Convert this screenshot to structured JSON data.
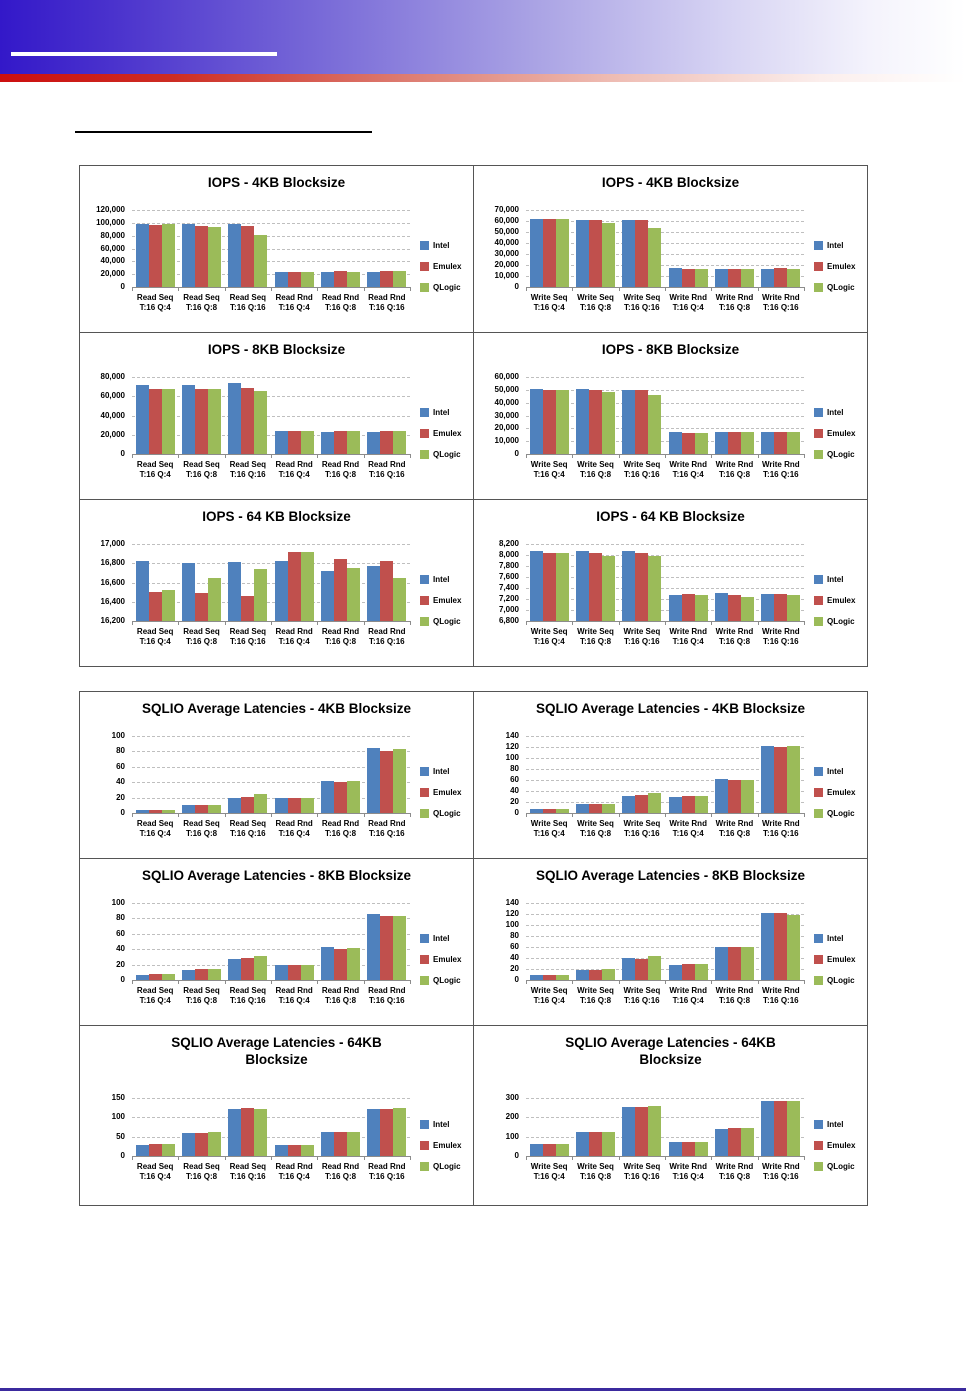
{
  "colors": {
    "header_blue": "#3318C9",
    "header_red": "#CC0F0F",
    "footer_line": "#3B2A9E",
    "gridline": "#BFBFBF",
    "axis": "#8C8C8C"
  },
  "legend": [
    {
      "name": "Intel",
      "color": "#4F81BD"
    },
    {
      "name": "Emulex",
      "color": "#C0504D"
    },
    {
      "name": "QLogic",
      "color": "#9BBB59"
    }
  ],
  "chart_data": [
    {
      "type": "bar",
      "title": "IOPS - 4KB Blocksize",
      "title_lines": [
        "IOPS - 4KB Blocksize"
      ],
      "group": "iops",
      "legend_position": "right",
      "grid": "dashed-horizontal",
      "xlabel": "",
      "ylabel": "",
      "ylim": [
        0,
        120000
      ],
      "ystep": 20000,
      "categories": [
        [
          "Read Seq",
          "T:16 Q:4"
        ],
        [
          "Read Seq",
          "T:16 Q:8"
        ],
        [
          "Read Seq",
          "T:16 Q:16"
        ],
        [
          "Read Rnd",
          "T:16 Q:4"
        ],
        [
          "Read Rnd",
          "T:16 Q:8"
        ],
        [
          "Read Rnd",
          "T:16 Q:16"
        ]
      ],
      "series": [
        {
          "name": "Intel",
          "values": [
            97500,
            97500,
            97500,
            23500,
            23500,
            23500
          ]
        },
        {
          "name": "Emulex",
          "values": [
            96000,
            95500,
            95000,
            23500,
            25000,
            25000
          ]
        },
        {
          "name": "QLogic",
          "values": [
            98500,
            93000,
            80500,
            23500,
            24000,
            25000
          ]
        }
      ]
    },
    {
      "type": "bar",
      "title": "IOPS - 4KB Blocksize",
      "title_lines": [
        "IOPS - 4KB Blocksize"
      ],
      "group": "iops",
      "legend_position": "right",
      "grid": "dashed-horizontal",
      "xlabel": "",
      "ylabel": "",
      "ylim": [
        0,
        70000
      ],
      "ystep": 10000,
      "categories": [
        [
          "Write Seq",
          "T:16 Q:4"
        ],
        [
          "Write Seq",
          "T:16 Q:8"
        ],
        [
          "Write Seq",
          "T:16 Q:16"
        ],
        [
          "Write Rnd",
          "T:16 Q:4"
        ],
        [
          "Write Rnd",
          "T:16 Q:8"
        ],
        [
          "Write Rnd",
          "T:16 Q:16"
        ]
      ],
      "series": [
        {
          "name": "Intel",
          "values": [
            62000,
            61200,
            61200,
            17000,
            16500,
            16500
          ]
        },
        {
          "name": "Emulex",
          "values": [
            62000,
            60800,
            60800,
            16500,
            16500,
            17300
          ]
        },
        {
          "name": "QLogic",
          "values": [
            62200,
            58500,
            54000,
            16500,
            16500,
            16500
          ]
        }
      ]
    },
    {
      "type": "bar",
      "title": "IOPS - 8KB Blocksize",
      "title_lines": [
        "IOPS - 8KB Blocksize"
      ],
      "group": "iops",
      "legend_position": "right",
      "grid": "dashed-horizontal",
      "xlabel": "",
      "ylabel": "",
      "ylim": [
        0,
        80000
      ],
      "ystep": 20000,
      "categories": [
        [
          "Read Seq",
          "T:16 Q:4"
        ],
        [
          "Read Seq",
          "T:16 Q:8"
        ],
        [
          "Read Seq",
          "T:16 Q:16"
        ],
        [
          "Read Rnd",
          "T:16 Q:4"
        ],
        [
          "Read Rnd",
          "T:16 Q:8"
        ],
        [
          "Read Rnd",
          "T:16 Q:16"
        ]
      ],
      "series": [
        {
          "name": "Intel",
          "values": [
            72000,
            72000,
            73500,
            24300,
            23300,
            23300
          ]
        },
        {
          "name": "Emulex",
          "values": [
            68000,
            67300,
            68200,
            24300,
            24300,
            24300
          ]
        },
        {
          "name": "QLogic",
          "values": [
            68000,
            67300,
            65000,
            24300,
            24300,
            24300
          ]
        }
      ]
    },
    {
      "type": "bar",
      "title": "IOPS - 8KB Blocksize",
      "title_lines": [
        "IOPS - 8KB Blocksize"
      ],
      "group": "iops",
      "legend_position": "right",
      "grid": "dashed-horizontal",
      "xlabel": "",
      "ylabel": "",
      "ylim": [
        0,
        60000
      ],
      "ystep": 10000,
      "categories": [
        [
          "Write Seq",
          "T:16 Q:4"
        ],
        [
          "Write Seq",
          "T:16 Q:8"
        ],
        [
          "Write Seq",
          "T:16 Q:16"
        ],
        [
          "Write Rnd",
          "T:16 Q:4"
        ],
        [
          "Write Rnd",
          "T:16 Q:8"
        ],
        [
          "Write Rnd",
          "T:16 Q:16"
        ]
      ],
      "series": [
        {
          "name": "Intel",
          "values": [
            50500,
            50500,
            49800,
            17000,
            16800,
            16800
          ]
        },
        {
          "name": "Emulex",
          "values": [
            49700,
            49800,
            49800,
            16300,
            16800,
            16800
          ]
        },
        {
          "name": "QLogic",
          "values": [
            49500,
            48000,
            46200,
            16300,
            16800,
            16800
          ]
        }
      ]
    },
    {
      "type": "bar",
      "title": "IOPS - 64 KB Blocksize",
      "title_lines": [
        "IOPS - 64 KB Blocksize"
      ],
      "group": "iops",
      "legend_position": "right",
      "grid": "dashed-horizontal",
      "xlabel": "",
      "ylabel": "",
      "ylim": [
        16200,
        17000
      ],
      "ystep": 200,
      "categories": [
        [
          "Read Seq",
          "T:16 Q:4"
        ],
        [
          "Read Seq",
          "T:16 Q:8"
        ],
        [
          "Read Seq",
          "T:16 Q:16"
        ],
        [
          "Read Rnd",
          "T:16 Q:4"
        ],
        [
          "Read Rnd",
          "T:16 Q:8"
        ],
        [
          "Read Rnd",
          "T:16 Q:16"
        ]
      ],
      "series": [
        {
          "name": "Intel",
          "values": [
            16825,
            16800,
            16810,
            16825,
            16720,
            16775
          ]
        },
        {
          "name": "Emulex",
          "values": [
            16505,
            16490,
            16455,
            16915,
            16840,
            16820
          ]
        },
        {
          "name": "QLogic",
          "values": [
            16525,
            16650,
            16740,
            16915,
            16755,
            16645
          ]
        }
      ]
    },
    {
      "type": "bar",
      "title": "IOPS - 64 KB Blocksize",
      "title_lines": [
        "IOPS - 64 KB Blocksize"
      ],
      "group": "iops",
      "legend_position": "right",
      "grid": "dashed-horizontal",
      "xlabel": "",
      "ylabel": "",
      "ylim": [
        6800,
        8200
      ],
      "ystep": 200,
      "categories": [
        [
          "Write Seq",
          "T:16 Q:4"
        ],
        [
          "Write Seq",
          "T:16 Q:8"
        ],
        [
          "Write Seq",
          "T:16 Q:16"
        ],
        [
          "Write Rnd",
          "T:16 Q:4"
        ],
        [
          "Write Rnd",
          "T:16 Q:8"
        ],
        [
          "Write Rnd",
          "T:16 Q:16"
        ]
      ],
      "series": [
        {
          "name": "Intel",
          "values": [
            8070,
            8070,
            8070,
            7275,
            7305,
            7290
          ]
        },
        {
          "name": "Emulex",
          "values": [
            8040,
            8040,
            8040,
            7290,
            7280,
            7290
          ]
        },
        {
          "name": "QLogic",
          "values": [
            8030,
            7990,
            7980,
            7280,
            7245,
            7265
          ]
        }
      ]
    },
    {
      "type": "bar",
      "title": "SQLIO Average Latencies - 4KB Blocksize",
      "title_lines": [
        "SQLIO Average Latencies - 4KB Blocksize"
      ],
      "group": "latency",
      "legend_position": "right",
      "grid": "dashed-horizontal",
      "xlabel": "",
      "ylabel": "",
      "ylim": [
        0,
        100
      ],
      "ystep": 20,
      "categories": [
        [
          "Read Seq",
          "T:16 Q:4"
        ],
        [
          "Read Seq",
          "T:16 Q:8"
        ],
        [
          "Read Seq",
          "T:16 Q:16"
        ],
        [
          "Read Rnd",
          "T:16 Q:4"
        ],
        [
          "Read Rnd",
          "T:16 Q:8"
        ],
        [
          "Read Rnd",
          "T:16 Q:16"
        ]
      ],
      "series": [
        {
          "name": "Intel",
          "values": [
            4,
            10,
            20,
            20,
            41.5,
            85
          ]
        },
        {
          "name": "Emulex",
          "values": [
            4,
            10,
            20.5,
            20,
            40.5,
            81
          ]
        },
        {
          "name": "QLogic",
          "values": [
            4,
            10,
            24.5,
            20,
            41.5,
            82.5
          ]
        }
      ]
    },
    {
      "type": "bar",
      "title": "SQLIO Average Latencies - 4KB Blocksize",
      "title_lines": [
        "SQLIO Average Latencies - 4KB Blocksize"
      ],
      "group": "latency",
      "legend_position": "right",
      "grid": "dashed-horizontal",
      "xlabel": "",
      "ylabel": "",
      "ylim": [
        0,
        140
      ],
      "ystep": 20,
      "categories": [
        [
          "Write Seq",
          "T:16 Q:4"
        ],
        [
          "Write Seq",
          "T:16 Q:8"
        ],
        [
          "Write Seq",
          "T:16 Q:16"
        ],
        [
          "Write Rnd",
          "T:16 Q:4"
        ],
        [
          "Write Rnd",
          "T:16 Q:8"
        ],
        [
          "Write Rnd",
          "T:16 Q:16"
        ]
      ],
      "series": [
        {
          "name": "Intel",
          "values": [
            7,
            17,
            31,
            28.5,
            61,
            121
          ]
        },
        {
          "name": "Emulex",
          "values": [
            7,
            17,
            32.5,
            30.5,
            59.5,
            120
          ]
        },
        {
          "name": "QLogic",
          "values": [
            7,
            17,
            37,
            30.5,
            60.5,
            121
          ]
        }
      ]
    },
    {
      "type": "bar",
      "title": "SQLIO Average Latencies - 8KB Blocksize",
      "title_lines": [
        "SQLIO Average Latencies - 8KB Blocksize"
      ],
      "group": "latency",
      "legend_position": "right",
      "grid": "dashed-horizontal",
      "xlabel": "",
      "ylabel": "",
      "ylim": [
        0,
        100
      ],
      "ystep": 20,
      "categories": [
        [
          "Read Seq",
          "T:16 Q:4"
        ],
        [
          "Read Seq",
          "T:16 Q:8"
        ],
        [
          "Read Seq",
          "T:16 Q:16"
        ],
        [
          "Read Rnd",
          "T:16 Q:4"
        ],
        [
          "Read Rnd",
          "T:16 Q:8"
        ],
        [
          "Read Rnd",
          "T:16 Q:16"
        ]
      ],
      "series": [
        {
          "name": "Intel",
          "values": [
            6,
            13,
            27,
            19.5,
            42.5,
            86
          ]
        },
        {
          "name": "Emulex",
          "values": [
            7.5,
            14,
            29,
            19.5,
            40,
            83.5
          ]
        },
        {
          "name": "QLogic",
          "values": [
            7.5,
            14,
            31,
            20,
            41,
            83.5
          ]
        }
      ]
    },
    {
      "type": "bar",
      "title": "SQLIO Average Latencies - 8KB Blocksize",
      "title_lines": [
        "SQLIO Average Latencies - 8KB Blocksize"
      ],
      "group": "latency",
      "legend_position": "right",
      "grid": "dashed-horizontal",
      "xlabel": "",
      "ylabel": "",
      "ylim": [
        0,
        140
      ],
      "ystep": 20,
      "categories": [
        [
          "Write Seq",
          "T:16 Q:4"
        ],
        [
          "Write Seq",
          "T:16 Q:8"
        ],
        [
          "Write Seq",
          "T:16 Q:16"
        ],
        [
          "Write Rnd",
          "T:16 Q:4"
        ],
        [
          "Write Rnd",
          "T:16 Q:8"
        ],
        [
          "Write Rnd",
          "T:16 Q:16"
        ]
      ],
      "series": [
        {
          "name": "Intel",
          "values": [
            9,
            19,
            39.5,
            28,
            59.5,
            122
          ]
        },
        {
          "name": "Emulex",
          "values": [
            9,
            19,
            39,
            30,
            59.5,
            122
          ]
        },
        {
          "name": "QLogic",
          "values": [
            9,
            19.5,
            43,
            30,
            59.5,
            119
          ]
        }
      ]
    },
    {
      "type": "bar",
      "title": "SQLIO Average Latencies - 64KB Blocksize",
      "title_lines": [
        "SQLIO Average Latencies - 64KB",
        "Blocksize"
      ],
      "group": "latency",
      "legend_position": "right",
      "grid": "dashed-horizontal",
      "xlabel": "",
      "ylabel": "",
      "ylim": [
        0,
        150
      ],
      "ystep": 50,
      "categories": [
        [
          "Read Seq",
          "T:16 Q:4"
        ],
        [
          "Read Seq",
          "T:16 Q:8"
        ],
        [
          "Read Seq",
          "T:16 Q:16"
        ],
        [
          "Read Rnd",
          "T:16 Q:4"
        ],
        [
          "Read Rnd",
          "T:16 Q:8"
        ],
        [
          "Read Rnd",
          "T:16 Q:16"
        ]
      ],
      "series": [
        {
          "name": "Intel",
          "values": [
            29,
            60,
            122,
            29,
            61,
            122
          ]
        },
        {
          "name": "Emulex",
          "values": [
            31,
            60,
            125,
            29,
            61,
            122
          ]
        },
        {
          "name": "QLogic",
          "values": [
            31,
            61,
            122,
            29,
            61,
            125
          ]
        }
      ]
    },
    {
      "type": "bar",
      "title": "SQLIO Average Latencies - 64KB Blocksize",
      "title_lines": [
        "SQLIO Average Latencies - 64KB",
        "Blocksize"
      ],
      "group": "latency",
      "legend_position": "right",
      "grid": "dashed-horizontal",
      "xlabel": "",
      "ylabel": "",
      "ylim": [
        0,
        300
      ],
      "ystep": 100,
      "categories": [
        [
          "Write Seq",
          "T:16 Q:4"
        ],
        [
          "Write Seq",
          "T:16 Q:8"
        ],
        [
          "Write Seq",
          "T:16 Q:16"
        ],
        [
          "Write Rnd",
          "T:16 Q:4"
        ],
        [
          "Write Rnd",
          "T:16 Q:8"
        ],
        [
          "Write Rnd",
          "T:16 Q:16"
        ]
      ],
      "series": [
        {
          "name": "Intel",
          "values": [
            63,
            126,
            255,
            71,
            139,
            283
          ]
        },
        {
          "name": "Emulex",
          "values": [
            63,
            126,
            255,
            71,
            143,
            283
          ]
        },
        {
          "name": "QLogic",
          "values": [
            63,
            126,
            260,
            71,
            143,
            283
          ]
        }
      ]
    }
  ]
}
